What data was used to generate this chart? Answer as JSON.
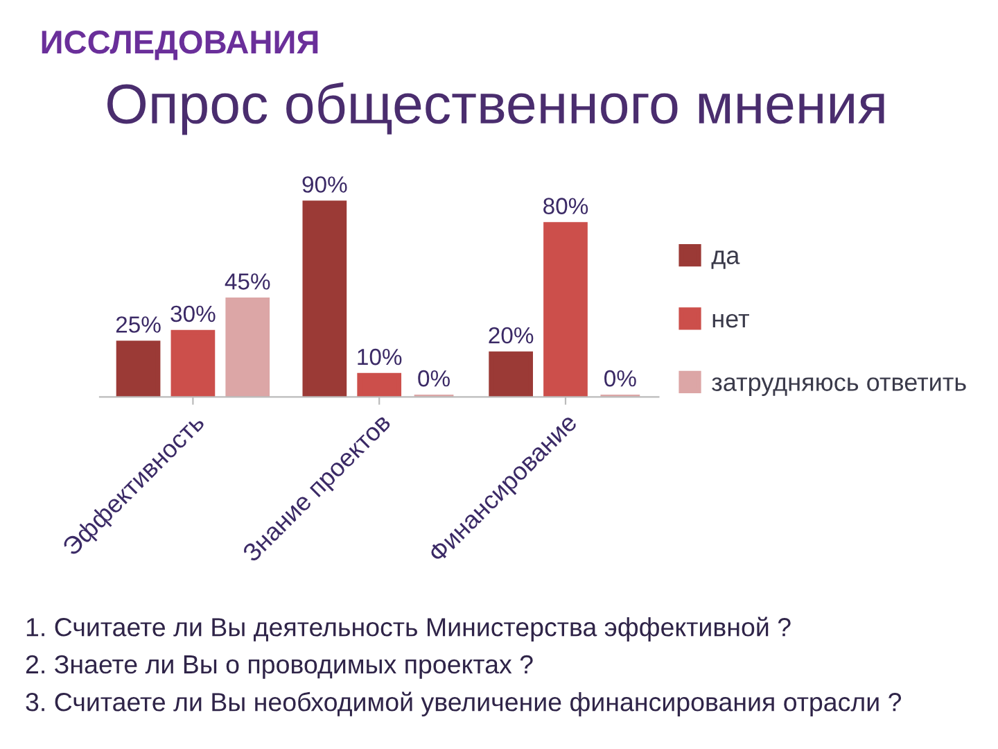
{
  "chart_data": {
    "type": "bar",
    "subtitle": "ИССЛЕДОВАНИЯ",
    "title": "Опрос общественного мнения",
    "categories": [
      "Эффективность",
      "Знание проектов",
      "Финансирование"
    ],
    "series": [
      {
        "name": "да",
        "color": "#9b3a36",
        "values": [
          25,
          90,
          20
        ],
        "value_labels": [
          "25%",
          "90%",
          "20%"
        ]
      },
      {
        "name": "нет",
        "color": "#cc4f4b",
        "values": [
          30,
          10,
          80
        ],
        "value_labels": [
          "30%",
          "10%",
          "80%"
        ]
      },
      {
        "name": "затрудняюсь ответить",
        "color": "#dca6a6",
        "values": [
          45,
          0,
          0
        ],
        "value_labels": [
          "45%",
          "0%",
          "0%"
        ]
      }
    ],
    "legend": "right",
    "grid": false,
    "annotations": [
      "1. Считаете ли Вы деятельность Министерства эффективной ?",
      "2. Знаете ли Вы о проводимых проектах ?",
      "3. Считаете ли Вы необходимой увеличение финансирования отрасли ?"
    ]
  }
}
